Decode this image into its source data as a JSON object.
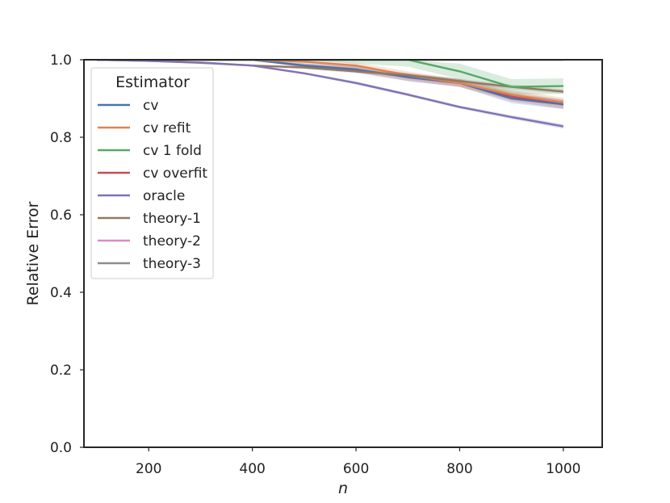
{
  "chart_data": {
    "type": "line",
    "xlabel": "n",
    "ylabel": "Relative Error",
    "xlim": [
      75,
      1075
    ],
    "ylim": [
      0,
      1
    ],
    "xticks": [
      200,
      400,
      600,
      800,
      1000
    ],
    "xtick_labels": [
      "200",
      "400",
      "600",
      "800",
      "1000"
    ],
    "yticks": [
      0.0,
      0.2,
      0.4,
      0.6,
      0.8,
      1.0
    ],
    "ytick_labels": [
      "0.0",
      "0.2",
      "0.4",
      "0.6",
      "0.8",
      "1.0"
    ],
    "grid": false,
    "legend": {
      "title": "Estimator",
      "placement": "upper-left"
    },
    "x": [
      100,
      200,
      300,
      400,
      500,
      600,
      700,
      800,
      900,
      1000
    ],
    "series": [
      {
        "name": "cv",
        "color": "#4c72b0",
        "values": [
          1.0,
          1.0,
          1.0,
          1.0,
          0.985,
          0.975,
          0.955,
          0.94,
          0.9,
          0.885
        ],
        "band": [
          0.0,
          0.0,
          0.0,
          0.0,
          0.006,
          0.008,
          0.01,
          0.01,
          0.012,
          0.012
        ]
      },
      {
        "name": "cv refit",
        "color": "#dd8452",
        "values": [
          1.0,
          1.0,
          1.0,
          1.0,
          0.995,
          0.985,
          0.96,
          0.94,
          0.91,
          0.89
        ],
        "band": [
          0.0,
          0.0,
          0.0,
          0.0,
          0.005,
          0.008,
          0.01,
          0.01,
          0.012,
          0.012
        ]
      },
      {
        "name": "cv 1 fold",
        "color": "#55a868",
        "values": [
          1.0,
          1.0,
          1.0,
          1.0,
          1.0,
          1.0,
          1.0,
          0.97,
          0.93,
          0.932
        ],
        "band": [
          0.0,
          0.0,
          0.0,
          0.0,
          0.0,
          0.01,
          0.018,
          0.02,
          0.02,
          0.02
        ]
      },
      {
        "name": "cv overfit",
        "color": "#c44e52",
        "values": [
          1.0,
          1.0,
          1.0,
          1.0,
          0.985,
          0.975,
          0.955,
          0.94,
          0.905,
          0.885
        ],
        "band": [
          0.0,
          0.0,
          0.0,
          0.0,
          0.005,
          0.008,
          0.01,
          0.01,
          0.012,
          0.012
        ]
      },
      {
        "name": "oracle",
        "color": "#8172b3",
        "values": [
          1.0,
          0.997,
          0.993,
          0.985,
          0.965,
          0.94,
          0.91,
          0.878,
          0.852,
          0.828
        ],
        "band": [
          0.0,
          0.0,
          0.0,
          0.002,
          0.003,
          0.004,
          0.004,
          0.004,
          0.005,
          0.006
        ]
      },
      {
        "name": "theory-1",
        "color": "#937860",
        "values": [
          1.0,
          0.997,
          0.992,
          0.985,
          0.98,
          0.97,
          0.96,
          0.945,
          0.93,
          0.918
        ],
        "band": [
          0.0,
          0.0,
          0.0,
          0.002,
          0.004,
          0.005,
          0.005,
          0.006,
          0.006,
          0.006
        ]
      },
      {
        "name": "theory-2",
        "color": "#da8bc3",
        "values": [
          1.0,
          1.0,
          1.0,
          1.0,
          1.0,
          1.0,
          1.0,
          1.0,
          1.0,
          1.0
        ],
        "band": [
          0.0,
          0.0,
          0.0,
          0.0,
          0.0,
          0.0,
          0.0,
          0.0,
          0.0,
          0.0
        ]
      },
      {
        "name": "theory-3",
        "color": "#8c8c8c",
        "values": [
          1.0,
          1.0,
          1.0,
          1.0,
          1.0,
          1.0,
          1.0,
          1.0,
          1.0,
          1.0
        ],
        "band": [
          0.0,
          0.0,
          0.0,
          0.0,
          0.0,
          0.0,
          0.0,
          0.0,
          0.0,
          0.0
        ]
      }
    ]
  }
}
